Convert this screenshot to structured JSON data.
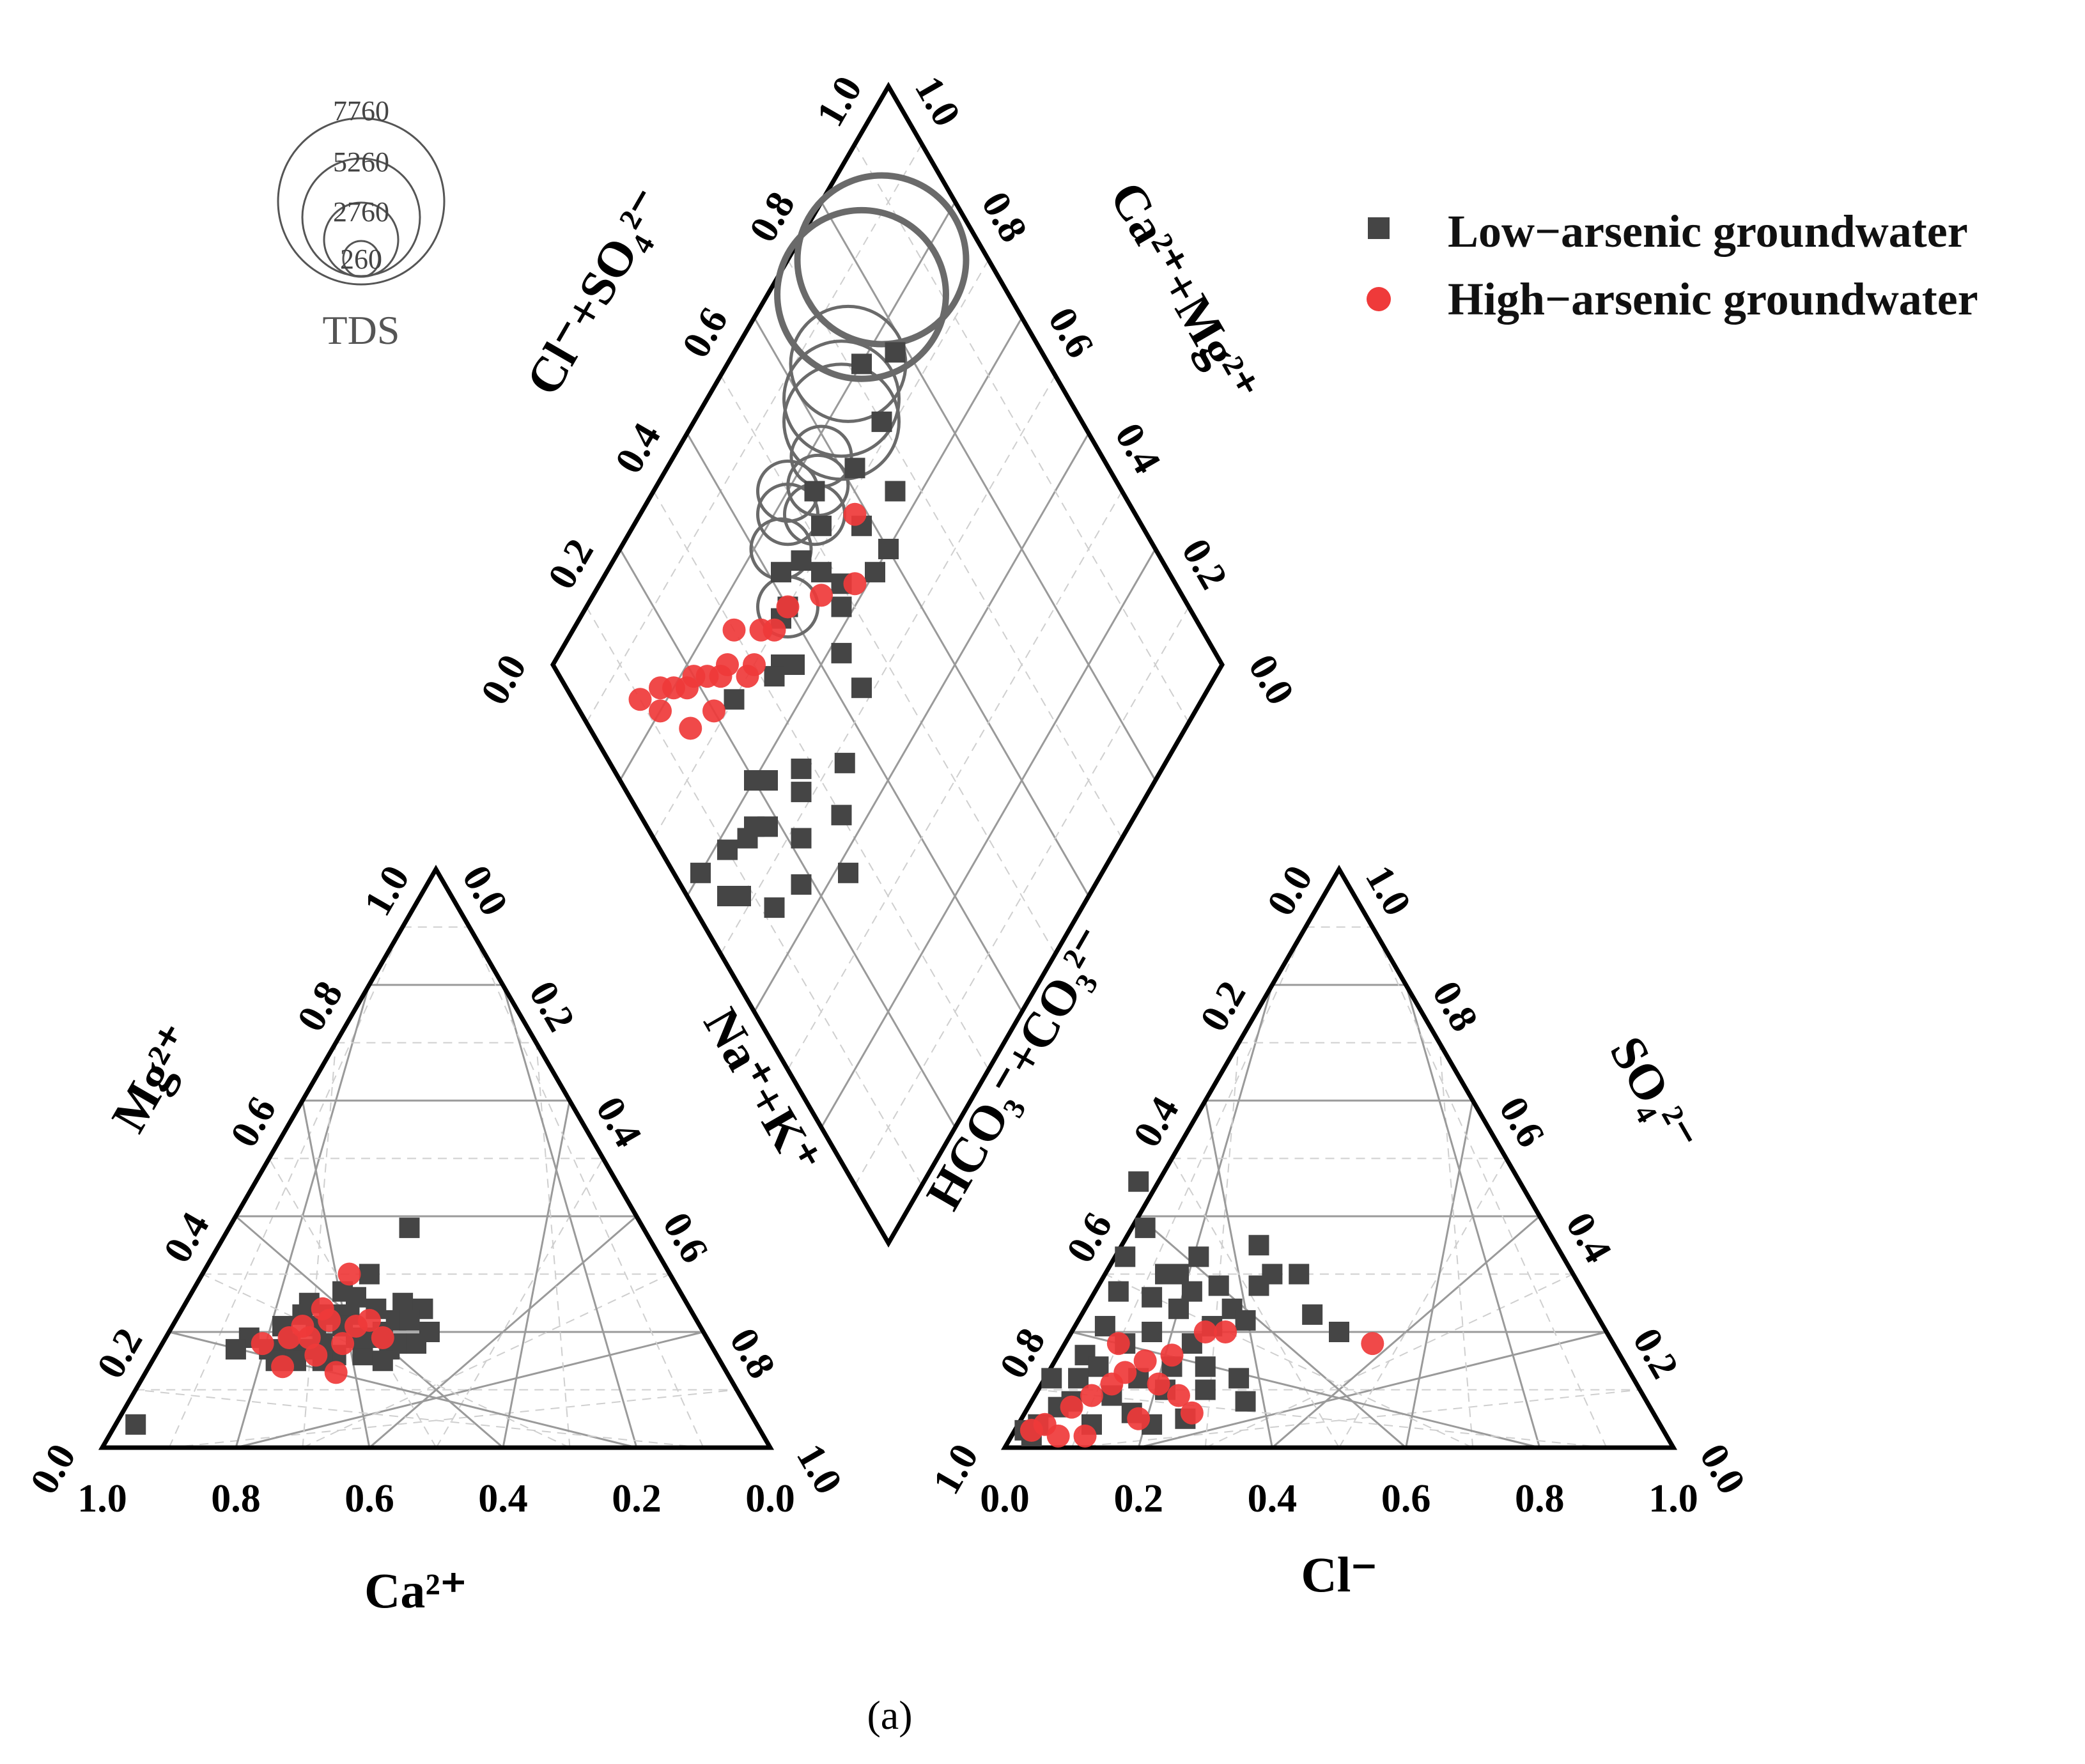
{
  "chart_data": {
    "type": "scatter",
    "subtype": "piper-diagram",
    "series": [
      {
        "name": "Low−arsenic groundwater",
        "marker": "square",
        "color": "#454545"
      },
      {
        "name": "High−arsenic groundwater",
        "marker": "circle",
        "color": "#ef3a3a"
      }
    ],
    "tds": {
      "title": "TDS",
      "values": [
        7760,
        5260,
        2760,
        260
      ],
      "labels": [
        "7760",
        "5260",
        "2760",
        "260"
      ]
    },
    "cation_triangle": {
      "bottom_label": "Ca²⁺",
      "left_label": "Mg²⁺",
      "right_label": "Na⁺+K⁺",
      "bottom_ticks": [
        "1.0",
        "0.8",
        "0.6",
        "0.4",
        "0.2",
        "0.0"
      ],
      "left_ticks": [
        "0.0",
        "0.2",
        "0.4",
        "0.6",
        "0.8",
        "1.0"
      ],
      "right_ticks": [
        "0.0",
        "0.2",
        "0.4",
        "0.6",
        "0.8",
        "1.0"
      ],
      "low_points": [
        [
          0.46,
          0.38
        ],
        [
          0.4,
          0.3
        ],
        [
          0.38,
          0.26
        ],
        [
          0.3,
          0.23
        ],
        [
          0.27,
          0.21
        ],
        [
          0.41,
          0.24
        ],
        [
          0.37,
          0.23
        ],
        [
          0.45,
          0.25
        ],
        [
          0.33,
          0.18
        ],
        [
          0.28,
          0.18
        ],
        [
          0.36,
          0.21
        ],
        [
          0.42,
          0.2
        ],
        [
          0.44,
          0.22
        ],
        [
          0.48,
          0.24
        ],
        [
          0.39,
          0.16
        ],
        [
          0.35,
          0.16
        ],
        [
          0.3,
          0.17
        ],
        [
          0.4,
          0.19
        ],
        [
          0.43,
          0.17
        ],
        [
          0.47,
          0.18
        ],
        [
          0.25,
          0.17
        ],
        [
          0.22,
          0.19
        ],
        [
          0.2,
          0.17
        ],
        [
          0.32,
          0.21
        ],
        [
          0.34,
          0.23
        ],
        [
          0.26,
          0.15
        ],
        [
          0.31,
          0.25
        ],
        [
          0.29,
          0.15
        ],
        [
          0.44,
          0.18
        ],
        [
          0.33,
          0.15
        ],
        [
          0.05,
          0.04
        ],
        [
          0.36,
          0.27
        ],
        [
          0.49,
          0.2
        ],
        [
          0.46,
          0.22
        ],
        [
          0.38,
          0.19
        ],
        [
          0.42,
          0.15
        ]
      ],
      "high_points": [
        [
          0.37,
          0.3
        ],
        [
          0.34,
          0.22
        ],
        [
          0.38,
          0.21
        ],
        [
          0.31,
          0.19
        ],
        [
          0.28,
          0.19
        ],
        [
          0.36,
          0.18
        ],
        [
          0.4,
          0.22
        ],
        [
          0.32,
          0.16
        ],
        [
          0.24,
          0.18
        ],
        [
          0.27,
          0.14
        ],
        [
          0.33,
          0.24
        ],
        [
          0.42,
          0.19
        ],
        [
          0.35,
          0.13
        ],
        [
          0.3,
          0.21
        ]
      ]
    },
    "anion_triangle": {
      "bottom_label": "Cl⁻",
      "left_label": "HCO₃⁻+CO₃²⁻",
      "right_label": "SO₄²⁻",
      "bottom_ticks": [
        "0.0",
        "0.2",
        "0.4",
        "0.6",
        "0.8",
        "1.0"
      ],
      "left_ticks": [
        "1.0",
        "0.8",
        "0.6",
        "0.4",
        "0.2",
        "0.0"
      ],
      "right_ticks": [
        "1.0",
        "0.8",
        "0.6",
        "0.4",
        "0.2",
        "0.0"
      ],
      "low_points": [
        [
          0.18,
          0.33
        ],
        [
          0.2,
          0.46
        ],
        [
          0.21,
          0.38
        ],
        [
          0.24,
          0.3
        ],
        [
          0.26,
          0.24
        ],
        [
          0.15,
          0.21
        ],
        [
          0.12,
          0.16
        ],
        [
          0.18,
          0.18
        ],
        [
          0.22,
          0.2
        ],
        [
          0.28,
          0.18
        ],
        [
          0.31,
          0.21
        ],
        [
          0.34,
          0.24
        ],
        [
          0.36,
          0.22
        ],
        [
          0.3,
          0.14
        ],
        [
          0.25,
          0.14
        ],
        [
          0.2,
          0.12
        ],
        [
          0.16,
          0.09
        ],
        [
          0.11,
          0.12
        ],
        [
          0.07,
          0.12
        ],
        [
          0.08,
          0.07
        ],
        [
          0.05,
          0.04
        ],
        [
          0.04,
          0.02
        ],
        [
          0.03,
          0.03
        ],
        [
          0.26,
          0.3
        ],
        [
          0.28,
          0.27
        ],
        [
          0.32,
          0.28
        ],
        [
          0.38,
          0.28
        ],
        [
          0.44,
          0.3
        ],
        [
          0.5,
          0.2
        ],
        [
          0.35,
          0.12
        ],
        [
          0.14,
          0.14
        ],
        [
          0.1,
          0.08
        ],
        [
          0.3,
          0.1
        ],
        [
          0.24,
          0.1
        ],
        [
          0.19,
          0.06
        ],
        [
          0.13,
          0.04
        ],
        [
          0.4,
          0.3
        ],
        [
          0.22,
          0.26
        ],
        [
          0.17,
          0.27
        ],
        [
          0.36,
          0.08
        ],
        [
          0.27,
          0.05
        ],
        [
          0.22,
          0.04
        ],
        [
          0.38,
          0.35
        ],
        [
          0.29,
          0.33
        ],
        [
          0.46,
          0.23
        ]
      ],
      "high_points": [
        [
          0.55,
          0.18
        ],
        [
          0.3,
          0.2
        ],
        [
          0.25,
          0.16
        ],
        [
          0.21,
          0.15
        ],
        [
          0.18,
          0.13
        ],
        [
          0.16,
          0.11
        ],
        [
          0.13,
          0.09
        ],
        [
          0.1,
          0.07
        ],
        [
          0.06,
          0.04
        ],
        [
          0.04,
          0.03
        ],
        [
          0.08,
          0.02
        ],
        [
          0.12,
          0.02
        ],
        [
          0.2,
          0.05
        ],
        [
          0.26,
          0.09
        ],
        [
          0.33,
          0.2
        ],
        [
          0.17,
          0.18
        ],
        [
          0.23,
          0.11
        ],
        [
          0.28,
          0.06
        ]
      ]
    },
    "diamond": {
      "upper_left_label": "Cl⁻+SO₄²⁻",
      "upper_right_label": "Ca²⁺+Mg²⁺",
      "upper_left_ticks": [
        "0.0",
        "0.2",
        "0.4",
        "0.6",
        "0.8",
        "1.0"
      ],
      "upper_right_ticks": [
        "1.0",
        "0.8",
        "0.6",
        "0.4",
        "0.2",
        "0.0"
      ],
      "low_points": [
        [
          0.78,
          0.24
        ],
        [
          0.7,
          0.28
        ],
        [
          0.72,
          0.2
        ],
        [
          0.62,
          0.28
        ],
        [
          0.6,
          0.4
        ],
        [
          0.52,
          0.28
        ],
        [
          0.48,
          0.32
        ],
        [
          0.44,
          0.42
        ],
        [
          0.4,
          0.3
        ],
        [
          0.38,
          0.3
        ],
        [
          0.36,
          0.36
        ],
        [
          0.34,
          0.34
        ],
        [
          0.32,
          0.34
        ],
        [
          0.28,
          0.46
        ],
        [
          0.26,
          0.48
        ],
        [
          0.2,
          0.4
        ],
        [
          0.22,
          0.42
        ],
        [
          0.24,
          0.3
        ],
        [
          0.16,
          0.44
        ],
        [
          0.18,
          0.46
        ],
        [
          0.14,
          0.44
        ],
        [
          0.1,
          0.42
        ],
        [
          0.08,
          0.48
        ],
        [
          0.18,
          0.56
        ],
        [
          0.26,
          0.62
        ],
        [
          0.12,
          0.54
        ],
        [
          0.06,
          0.46
        ],
        [
          0.04,
          0.4
        ],
        [
          0.3,
          0.56
        ],
        [
          0.44,
          0.48
        ],
        [
          0.56,
          0.4
        ],
        [
          0.66,
          0.36
        ],
        [
          0.58,
          0.34
        ],
        [
          0.5,
          0.36
        ],
        [
          0.54,
          0.24
        ],
        [
          0.42,
          0.26
        ],
        [
          0.46,
          0.28
        ],
        [
          0.48,
          0.38
        ],
        [
          0.35,
          0.52
        ],
        [
          0.22,
          0.52
        ]
      ],
      "high_points": [
        [
          0.34,
          0.28
        ],
        [
          0.3,
          0.3
        ],
        [
          0.28,
          0.3
        ],
        [
          0.26,
          0.26
        ],
        [
          0.24,
          0.26
        ],
        [
          0.22,
          0.24
        ],
        [
          0.2,
          0.22
        ],
        [
          0.18,
          0.22
        ],
        [
          0.16,
          0.2
        ],
        [
          0.14,
          0.18
        ],
        [
          0.12,
          0.2
        ],
        [
          0.1,
          0.16
        ],
        [
          0.36,
          0.3
        ],
        [
          0.4,
          0.3
        ],
        [
          0.58,
          0.32
        ],
        [
          0.52,
          0.38
        ],
        [
          0.46,
          0.34
        ],
        [
          0.2,
          0.28
        ],
        [
          0.15,
          0.26
        ],
        [
          0.3,
          0.24
        ]
      ],
      "tds_circles": [
        [
          0.84,
          0.14,
          7760
        ],
        [
          0.78,
          0.14,
          7760
        ],
        [
          0.7,
          0.18,
          2760
        ],
        [
          0.66,
          0.2,
          2760
        ],
        [
          0.64,
          0.22,
          2760
        ],
        [
          0.58,
          0.22,
          260
        ],
        [
          0.55,
          0.24,
          260
        ],
        [
          0.52,
          0.26,
          260
        ],
        [
          0.5,
          0.2,
          260
        ],
        [
          0.48,
          0.22,
          260
        ],
        [
          0.44,
          0.24,
          260
        ],
        [
          0.4,
          0.3,
          260
        ]
      ]
    }
  },
  "legend": {
    "low": "Low−arsenic groundwater",
    "high": "High−arsenic groundwater"
  },
  "caption": "(a)"
}
